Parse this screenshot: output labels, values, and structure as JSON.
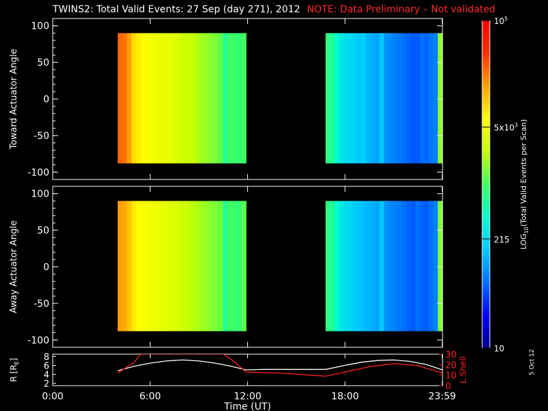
{
  "title": {
    "main": "TWINS2: Total Valid Events: 27 Sep (day 271), 2012",
    "note": "NOTE: Data Preliminary – Not validated"
  },
  "date_stamp": "5 Oct 12",
  "colorbar": {
    "label": "LOG10(Total Valid Events per Scan)",
    "ticks": [
      "10",
      "215",
      "5x10^3",
      "10^5"
    ],
    "scale": "log",
    "range": [
      10,
      100000
    ],
    "colors": [
      "#00008b",
      "#0000ff",
      "#0070ff",
      "#00c8ff",
      "#00ffd0",
      "#40ff60",
      "#c8ff00",
      "#ffff00",
      "#ffa000",
      "#ff3000",
      "#ff0000"
    ]
  },
  "chart_data": [
    {
      "type": "heatmap",
      "panel": "top",
      "ylabel": "Toward Actuator Angle",
      "ylim": [
        -110,
        110
      ],
      "yticks": [
        "100",
        "50",
        "0",
        "-50",
        "-100"
      ],
      "xlim": [
        0,
        24
      ],
      "data_y_range": [
        -88,
        90
      ],
      "blocks": [
        {
          "start_hour": 4.0,
          "end_hour": 11.9,
          "levels": [
            0.85,
            0.84,
            0.8,
            0.74,
            0.72,
            0.7,
            0.69,
            0.68,
            0.67,
            0.66,
            0.66,
            0.65,
            0.64,
            0.62,
            0.61,
            0.6,
            0.6,
            0.58,
            0.57,
            0.56,
            0.55,
            0.54,
            0.52,
            0.45,
            0.5,
            0.49,
            0.48,
            0.5
          ]
        },
        {
          "start_hour": 16.8,
          "end_hour": 23.99,
          "levels": [
            0.47,
            0.45,
            0.4,
            0.36,
            0.34,
            0.33,
            0.32,
            0.3,
            0.31,
            0.28,
            0.27,
            0.26,
            0.3,
            0.24,
            0.23,
            0.22,
            0.21,
            0.2,
            0.19,
            0.18,
            0.18,
            0.2,
            0.19,
            0.21,
            0.22,
            0.56
          ]
        }
      ]
    },
    {
      "type": "heatmap",
      "panel": "middle",
      "ylabel": "Away Actuator Angle",
      "ylim": [
        -110,
        110
      ],
      "yticks": [
        "100",
        "50",
        "0",
        "-50",
        "-100"
      ],
      "xlim": [
        0,
        24
      ],
      "data_y_range": [
        -88,
        90
      ],
      "blocks": [
        {
          "start_hour": 4.0,
          "end_hour": 11.9,
          "levels": [
            0.8,
            0.79,
            0.76,
            0.72,
            0.7,
            0.69,
            0.68,
            0.67,
            0.66,
            0.66,
            0.65,
            0.64,
            0.63,
            0.62,
            0.61,
            0.6,
            0.59,
            0.58,
            0.57,
            0.56,
            0.55,
            0.54,
            0.53,
            0.45,
            0.5,
            0.49,
            0.48,
            0.52
          ]
        },
        {
          "start_hour": 16.8,
          "end_hour": 23.99,
          "levels": [
            0.47,
            0.45,
            0.4,
            0.36,
            0.34,
            0.33,
            0.31,
            0.3,
            0.29,
            0.28,
            0.27,
            0.26,
            0.3,
            0.24,
            0.23,
            0.22,
            0.21,
            0.2,
            0.19,
            0.18,
            0.2,
            0.19,
            0.18,
            0.2,
            0.22,
            0.55
          ]
        }
      ]
    },
    {
      "type": "line",
      "panel": "ephemeris",
      "xlabel": "Time (UT)",
      "xlim": [
        0,
        24
      ],
      "xticks": [
        "0:00",
        "6:00",
        "12:00",
        "18:00",
        "23:59"
      ],
      "xtick_hours": [
        0,
        6,
        12,
        18,
        23.98
      ],
      "left_axis": {
        "label": "R [RE]",
        "ticks": [
          "8",
          "6",
          "4",
          "2"
        ],
        "ylim": [
          1.5,
          8.5
        ]
      },
      "right_axis": {
        "label": "L Shell",
        "ticks": [
          "30",
          "20",
          "10",
          "0"
        ],
        "ylim": [
          0,
          30
        ]
      },
      "series": [
        {
          "name": "R [RE]",
          "axis": "left",
          "color": "#ffffff",
          "x": [
            4.0,
            5.0,
            6.0,
            7.0,
            8.0,
            9.0,
            10.0,
            11.0,
            11.9,
            13.0,
            15.0,
            16.8,
            18.0,
            19.0,
            20.0,
            21.0,
            22.0,
            23.0,
            23.99
          ],
          "y": [
            4.8,
            5.8,
            6.5,
            7.0,
            7.2,
            7.0,
            6.5,
            5.8,
            5.0,
            5.1,
            5.1,
            5.1,
            6.0,
            6.7,
            7.1,
            7.2,
            6.9,
            6.2,
            5.0
          ]
        },
        {
          "name": "L Shell",
          "axis": "right",
          "color": "#ff2020",
          "x": [
            4.0,
            5.0,
            5.4,
            10.5,
            11.0,
            11.9,
            14.0,
            16.8,
            18.0,
            19.5,
            21.0,
            22.5,
            23.99
          ],
          "y": [
            12,
            22,
            30,
            30,
            25,
            13,
            12,
            9,
            13,
            18,
            21,
            19,
            12
          ]
        }
      ]
    }
  ]
}
